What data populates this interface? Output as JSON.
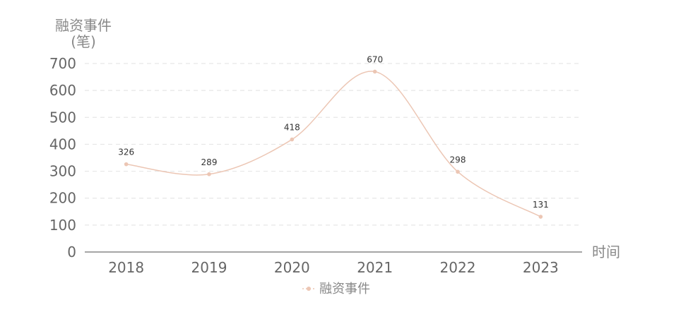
{
  "chart_data": {
    "type": "line",
    "smooth": true,
    "categories": [
      "2018",
      "2019",
      "2020",
      "2021",
      "2022",
      "2023"
    ],
    "series": [
      {
        "name": "融资事件",
        "values": [
          326,
          289,
          418,
          670,
          298,
          131
        ],
        "color": "#ecc6b4"
      }
    ],
    "ylabel_line1": "融资事件",
    "ylabel_line2": "(笔)",
    "xlabel": "时间",
    "ylim": [
      0,
      700
    ],
    "yticks": [
      "0",
      "100",
      "200",
      "300",
      "400",
      "500",
      "600",
      "700"
    ],
    "grid": true,
    "legend_position": "bottom-center",
    "colors": {
      "axis": "#888888",
      "grid": "#e6e6e6",
      "tick_text": "#666666"
    }
  }
}
